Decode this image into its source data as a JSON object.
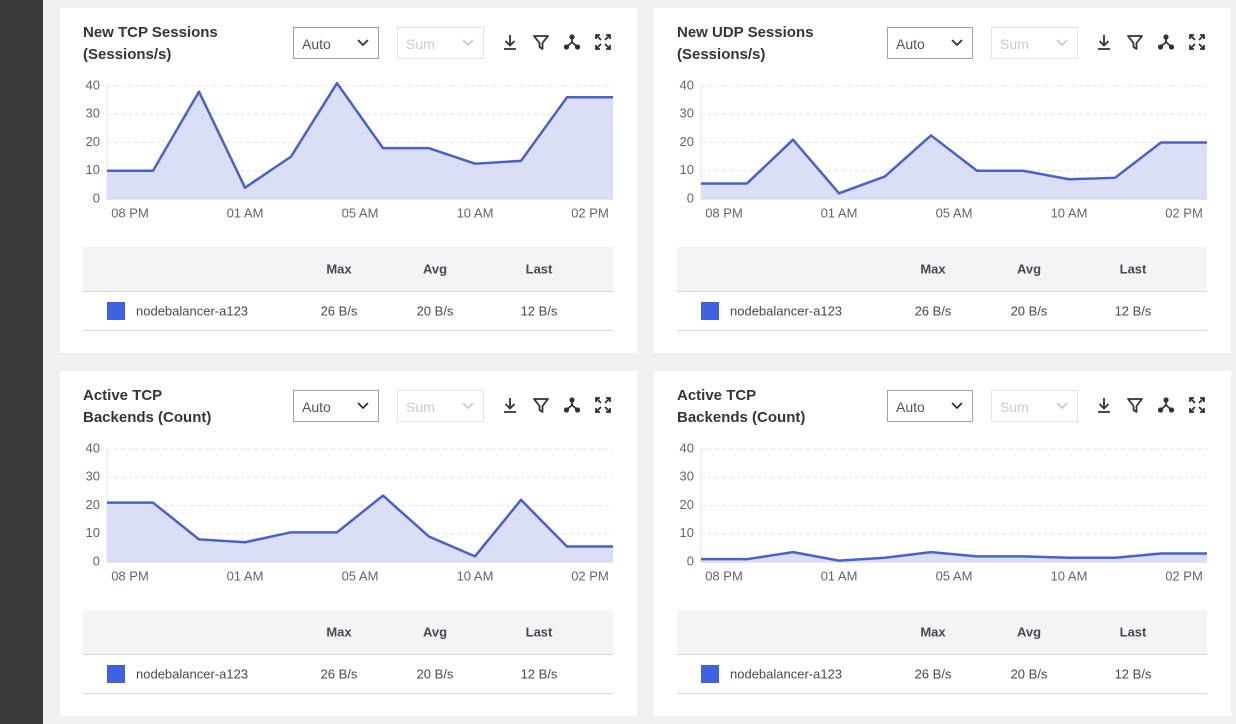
{
  "chart_data": [
    {
      "type": "line",
      "title": "New TCP Sessions (Sessions/s)",
      "x": [
        0,
        1,
        2,
        3,
        4,
        5,
        6,
        7,
        8,
        9,
        10,
        11
      ],
      "xlim": [
        0,
        11
      ],
      "xticks": [
        {
          "value": 0.5,
          "label": "08 PM"
        },
        {
          "value": 3,
          "label": "01 AM"
        },
        {
          "value": 5.5,
          "label": "05 AM"
        },
        {
          "value": 8,
          "label": "10 AM"
        },
        {
          "value": 10.5,
          "label": "02 PM"
        }
      ],
      "ylim": [
        0,
        40
      ],
      "yticks": [
        0,
        10,
        20,
        30,
        40
      ],
      "grid": true,
      "fill_area": true,
      "series": [
        {
          "name": "nodebalancer-a123",
          "color": "#4862c8",
          "fill": "#dadff7",
          "legend_color": "#3f63e0",
          "values": [
            10,
            10,
            38,
            4,
            15,
            41,
            18,
            18,
            12.5,
            13.5,
            36,
            36
          ]
        }
      ]
    },
    {
      "type": "line",
      "title": "New UDP Sessions (Sessions/s)",
      "x": [
        0,
        1,
        2,
        3,
        4,
        5,
        6,
        7,
        8,
        9,
        10,
        11
      ],
      "xlim": [
        0,
        11
      ],
      "xticks": [
        {
          "value": 0.5,
          "label": "08 PM"
        },
        {
          "value": 3,
          "label": "01 AM"
        },
        {
          "value": 5.5,
          "label": "05 AM"
        },
        {
          "value": 8,
          "label": "10 AM"
        },
        {
          "value": 10.5,
          "label": "02 PM"
        }
      ],
      "ylim": [
        0,
        40
      ],
      "yticks": [
        0,
        10,
        20,
        30,
        40
      ],
      "grid": true,
      "fill_area": true,
      "series": [
        {
          "name": "nodebalancer-a123",
          "color": "#4862c8",
          "fill": "#dadff7",
          "legend_color": "#3f63e0",
          "values": [
            5.5,
            5.5,
            21,
            2,
            8,
            22.5,
            10,
            10,
            7,
            7.5,
            20,
            20
          ]
        }
      ]
    },
    {
      "type": "line",
      "title": "Active TCP Backends (Count)",
      "x": [
        0,
        1,
        2,
        3,
        4,
        5,
        6,
        7,
        8,
        9,
        10,
        11
      ],
      "xlim": [
        0,
        11
      ],
      "xticks": [
        {
          "value": 0.5,
          "label": "08 PM"
        },
        {
          "value": 3,
          "label": "01 AM"
        },
        {
          "value": 5.5,
          "label": "05 AM"
        },
        {
          "value": 8,
          "label": "10 AM"
        },
        {
          "value": 10.5,
          "label": "02 PM"
        }
      ],
      "ylim": [
        0,
        40
      ],
      "yticks": [
        0,
        10,
        20,
        30,
        40
      ],
      "grid": true,
      "fill_area": true,
      "series": [
        {
          "name": "nodebalancer-a123",
          "color": "#4862c8",
          "fill": "#dadff7",
          "legend_color": "#3f63e0",
          "values": [
            21,
            21,
            8,
            7,
            10.5,
            10.5,
            23.5,
            9,
            2,
            22,
            5.5,
            5.5
          ]
        }
      ]
    },
    {
      "type": "line",
      "title": "Active TCP Backends (Count)",
      "x": [
        0,
        1,
        2,
        3,
        4,
        5,
        6,
        7,
        8,
        9,
        10,
        11
      ],
      "xlim": [
        0,
        11
      ],
      "xticks": [
        {
          "value": 0.5,
          "label": "08 PM"
        },
        {
          "value": 3,
          "label": "01 AM"
        },
        {
          "value": 5.5,
          "label": "05 AM"
        },
        {
          "value": 8,
          "label": "10 AM"
        },
        {
          "value": 10.5,
          "label": "02 PM"
        }
      ],
      "ylim": [
        0,
        40
      ],
      "yticks": [
        0,
        10,
        20,
        30,
        40
      ],
      "grid": true,
      "fill_area": true,
      "series": [
        {
          "name": "nodebalancer-a123",
          "color": "#4862c8",
          "fill": "#dadff7",
          "legend_color": "#3f63e0",
          "values": [
            1,
            1,
            3.5,
            0.5,
            1.5,
            3.5,
            2,
            2,
            1.5,
            1.5,
            3,
            3
          ]
        }
      ]
    }
  ],
  "panels": [
    {
      "interval": "Auto",
      "aggregate": "Sum",
      "table": {
        "columns": [
          "Max",
          "Avg",
          "Last"
        ],
        "rows": [
          [
            "26 B/s",
            "20 B/s",
            "12 B/s"
          ]
        ]
      }
    },
    {
      "interval": "Auto",
      "aggregate": "Sum",
      "table": {
        "columns": [
          "Max",
          "Avg",
          "Last"
        ],
        "rows": [
          [
            "26 B/s",
            "20 B/s",
            "12 B/s"
          ]
        ]
      }
    },
    {
      "interval": "Auto",
      "aggregate": "Sum",
      "table": {
        "columns": [
          "Max",
          "Avg",
          "Last"
        ],
        "rows": [
          [
            "26 B/s",
            "20 B/s",
            "12 B/s"
          ]
        ]
      }
    },
    {
      "interval": "Auto",
      "aggregate": "Sum",
      "table": {
        "columns": [
          "Max",
          "Avg",
          "Last"
        ],
        "rows": [
          [
            "26 B/s",
            "20 B/s",
            "12 B/s"
          ]
        ]
      }
    }
  ]
}
